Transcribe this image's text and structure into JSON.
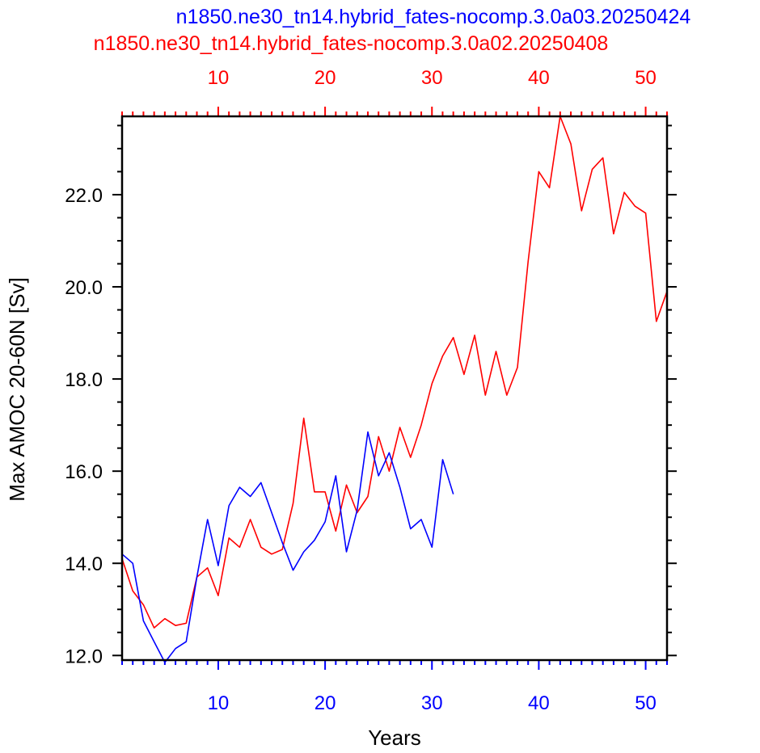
{
  "chart_data": {
    "type": "line",
    "title_lines": [
      {
        "text": "n1850.ne30_tn14.hybrid_fates-nocomp.3.0a03.20250424",
        "color": "#0000ff"
      },
      {
        "text": "n1850.ne30_tn14.hybrid_fates-nocomp.3.0a02.20250408",
        "color": "#ff0000"
      }
    ],
    "xlabel": "Years",
    "ylabel": "Max AMOC 20-60N [Sv]",
    "xlim": [
      1,
      52
    ],
    "ylim": [
      11.9,
      23.7
    ],
    "x_ticks": [
      10,
      20,
      30,
      40,
      50
    ],
    "x_tick_labels": [
      "10",
      "20",
      "30",
      "40",
      "50"
    ],
    "y_ticks": [
      12,
      14,
      16,
      18,
      20,
      22
    ],
    "y_tick_labels": [
      "12.0",
      "14.0",
      "16.0",
      "18.0",
      "20.0",
      "22.0"
    ],
    "bottom_axis_color": "#0000ff",
    "top_axis_color": "#ff0000",
    "grid": false,
    "series": [
      {
        "axis": "top",
        "color": "#ff0000",
        "x": [
          1,
          2,
          3,
          4,
          5,
          6,
          7,
          8,
          9,
          10,
          11,
          12,
          13,
          14,
          15,
          16,
          17,
          18,
          19,
          20,
          21,
          22,
          23,
          24,
          25,
          26,
          27,
          28,
          29,
          30,
          31,
          32,
          33,
          34,
          35,
          36,
          37,
          38,
          39,
          40,
          41,
          42,
          43,
          44,
          45,
          46,
          47,
          48,
          49,
          50,
          51,
          52
        ],
        "values": [
          14.1,
          13.4,
          13.1,
          12.6,
          12.8,
          12.65,
          12.7,
          13.7,
          13.9,
          13.3,
          14.55,
          14.35,
          14.95,
          14.35,
          14.2,
          14.3,
          15.3,
          17.15,
          15.55,
          15.55,
          14.7,
          15.7,
          15.1,
          15.45,
          16.75,
          16.0,
          16.95,
          16.3,
          17.0,
          17.9,
          18.5,
          18.9,
          18.1,
          18.95,
          17.65,
          18.6,
          17.65,
          18.25,
          20.55,
          22.5,
          22.15,
          23.7,
          23.1,
          21.65,
          22.55,
          22.8,
          21.15,
          22.05,
          21.75,
          21.6,
          19.25,
          19.9
        ]
      },
      {
        "axis": "bottom",
        "color": "#0000ff",
        "x": [
          1,
          2,
          3,
          4,
          5,
          6,
          7,
          8,
          9,
          10,
          11,
          12,
          13,
          14,
          15,
          16,
          17,
          18,
          19,
          20,
          21,
          22,
          23,
          24,
          25,
          26,
          27,
          28,
          29,
          30,
          31,
          32
        ],
        "values": [
          14.2,
          14.0,
          12.75,
          12.3,
          11.85,
          12.15,
          12.3,
          13.7,
          14.95,
          13.95,
          15.25,
          15.65,
          15.45,
          15.75,
          15.1,
          14.45,
          13.85,
          14.25,
          14.5,
          14.9,
          15.9,
          14.25,
          15.15,
          16.85,
          15.9,
          16.4,
          15.65,
          14.75,
          14.95,
          14.35,
          16.25,
          15.5
        ]
      }
    ]
  }
}
